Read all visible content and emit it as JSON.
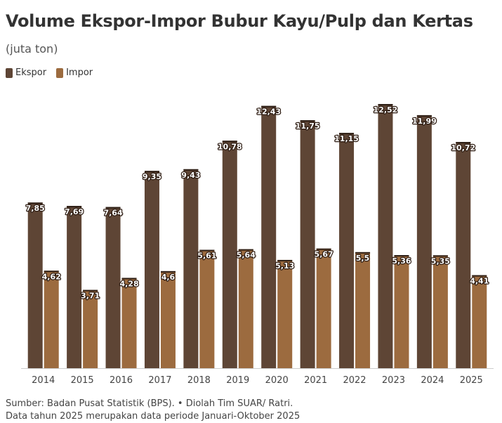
{
  "title": "Volume Ekspor-Impor Bubur Kayu/Pulp dan Kertas",
  "subtitle": "(juta ton)",
  "colors": {
    "ekspor": "#5e4535",
    "impor": "#9c6b3f"
  },
  "chart_data": {
    "type": "bar",
    "categories": [
      "2014",
      "2015",
      "2016",
      "2017",
      "2018",
      "2019",
      "2020",
      "2021",
      "2022",
      "2023",
      "2024",
      "2025"
    ],
    "series": [
      {
        "name": "Ekspor",
        "values": [
          7.85,
          7.69,
          7.64,
          9.35,
          9.43,
          10.78,
          12.43,
          11.75,
          11.15,
          12.52,
          11.99,
          10.72
        ],
        "labels": [
          "7,85",
          "7,69",
          "7,64",
          "9,35",
          "9,43",
          "10,78",
          "12,43",
          "11,75",
          "11,15",
          "12,52",
          "11,99",
          "10,72"
        ]
      },
      {
        "name": "Impor",
        "values": [
          4.62,
          3.71,
          4.28,
          4.6,
          5.61,
          5.64,
          5.13,
          5.67,
          5.5,
          5.36,
          5.35,
          4.41
        ],
        "labels": [
          "4,62",
          "3,71",
          "4,28",
          "4,6",
          "5,61",
          "5,64",
          "5,13",
          "5,67",
          "5,5",
          "5,36",
          "5,35",
          "4,41"
        ]
      }
    ],
    "ylim": [
      0,
      12.52
    ],
    "grid": false,
    "legend": "top-left"
  },
  "footer": {
    "source": "Sumber: Badan Pusat Statistik (BPS). • Diolah Tim SUAR/ Ratri.",
    "note": "Data tahun 2025 merupakan data periode Januari-Oktober 2025"
  }
}
